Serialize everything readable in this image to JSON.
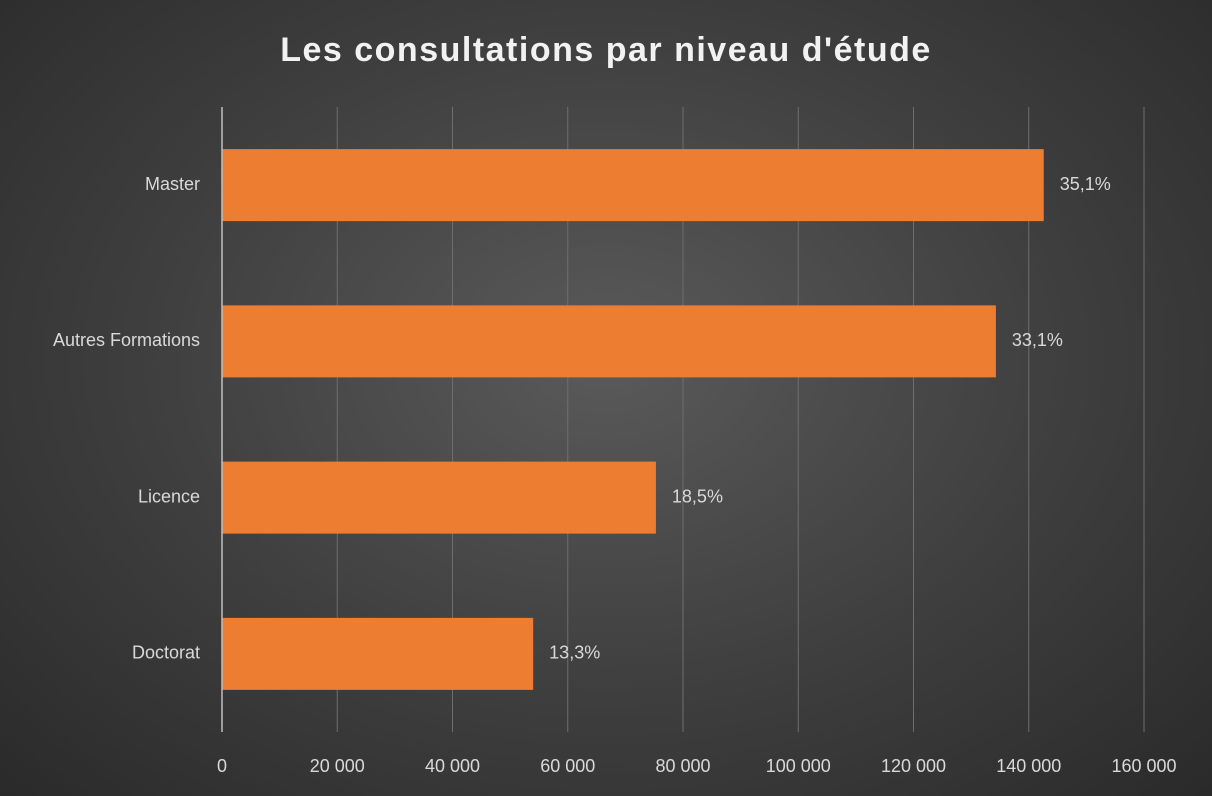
{
  "chart_data": {
    "type": "bar",
    "orientation": "horizontal",
    "title": "Les consultations par niveau d'étude",
    "categories": [
      "Master",
      "Autres Formations",
      "Licence",
      "Doctorat"
    ],
    "values": [
      142600,
      134300,
      75300,
      54000
    ],
    "shares": [
      {
        "value": 35.1,
        "label": "35,1%"
      },
      {
        "value": 33.1,
        "label": "33,1%"
      },
      {
        "value": 18.5,
        "label": "18,5%"
      },
      {
        "value": 13.3,
        "label": "13,3%"
      }
    ],
    "color": "#ed7d31",
    "xlim": [
      0,
      160000
    ],
    "xticks": [
      0,
      {
        "value": 20000,
        "label": "20 000"
      },
      {
        "value": 40000,
        "label": "40 000"
      },
      {
        "value": 60000,
        "label": "60 000"
      },
      {
        "value": 80000,
        "label": "80 000"
      },
      {
        "value": 100000,
        "label": "100 000"
      },
      {
        "value": 120000,
        "label": "120 000"
      },
      {
        "value": 140000,
        "label": "140 000"
      },
      {
        "value": 160000,
        "label": "160 000"
      }
    ],
    "grid": true
  }
}
